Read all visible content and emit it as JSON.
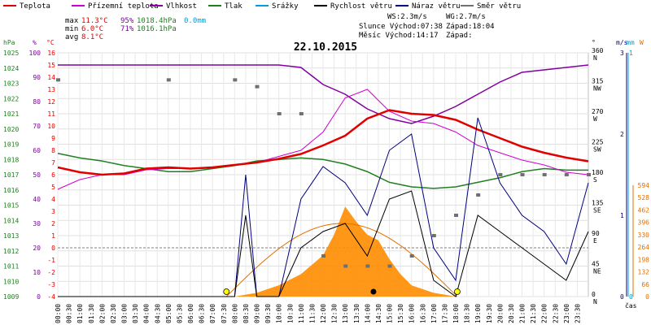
{
  "legend": [
    {
      "label": "Teplota",
      "color": "#e00000"
    },
    {
      "label": "Přízemní teplota",
      "color": "#d000d0"
    },
    {
      "label": "Vlhkost",
      "color": "#8000a0"
    },
    {
      "label": "Tlak",
      "color": "#208020"
    },
    {
      "label": "Srážky",
      "color": "#00a0d0"
    },
    {
      "label": "Rychlost větru",
      "color": "#000000"
    },
    {
      "label": "Náraz větru",
      "color": "#00007f"
    },
    {
      "label": "Směr větru",
      "color": "#707070"
    }
  ],
  "stats": {
    "max": {
      "label": "max",
      "temp": "11.3°C",
      "hum": "95%",
      "press": "1018.4hPa",
      "rain": "0.0mm"
    },
    "min": {
      "label": "min",
      "temp": "6.0°C",
      "hum": "71%",
      "press": "1016.1hPa"
    },
    "avg": {
      "label": "avg",
      "temp": "8.1°C"
    }
  },
  "info": {
    "ws": "WS:2.3m/s",
    "wg": "WG:2.7m/s",
    "sun": "Slunce Východ:07:38",
    "sun_set": "Západ:18:04",
    "moon": "Měsíc Východ:14:17",
    "moon_set": "Západ:"
  },
  "colors": {
    "temp": "#e00000",
    "feel": "#d000d0",
    "hum": "#8000a0",
    "press": "#208020",
    "rain": "#00a0d0",
    "wind": "#000000",
    "gust": "#00007f",
    "dir": "#707070",
    "sun": "#e07000"
  },
  "chart_data": {
    "type": "line",
    "title": "22.10.2015",
    "xlabel": "čas",
    "x_ticks": [
      "00:00",
      "00:30",
      "01:00",
      "01:30",
      "02:00",
      "02:30",
      "03:00",
      "03:30",
      "04:00",
      "04:30",
      "05:00",
      "05:30",
      "06:00",
      "06:30",
      "07:00",
      "07:30",
      "08:00",
      "08:30",
      "09:00",
      "09:30",
      "10:00",
      "10:30",
      "11:00",
      "11:30",
      "12:00",
      "12:30",
      "13:00",
      "13:30",
      "14:00",
      "14:30",
      "15:00",
      "15:30",
      "16:00",
      "16:30",
      "17:00",
      "17:30",
      "18:00",
      "18:30",
      "19:00",
      "19:30",
      "20:00",
      "20:30",
      "21:00",
      "21:30",
      "22:00",
      "22:30",
      "23:00",
      "23:30"
    ],
    "axes": {
      "pressure": {
        "label": "hPa",
        "ticks": [
          "1009",
          "1010",
          "1011",
          "1012",
          "1013",
          "1014",
          "1015",
          "1016",
          "1017",
          "1018",
          "1019",
          "1020",
          "1021",
          "1022",
          "1023",
          "1024",
          "1025"
        ],
        "range": [
          1009,
          1025
        ]
      },
      "humidity": {
        "label": "%",
        "ticks": [
          "0",
          "10",
          "20",
          "30",
          "40",
          "50",
          "60",
          "70",
          "80",
          "90",
          "100"
        ],
        "range": [
          0,
          100
        ]
      },
      "temperature": {
        "label": "°C",
        "ticks": [
          "-4",
          "-3",
          "-2",
          "-1",
          "0",
          "1",
          "2",
          "3",
          "4",
          "5",
          "6",
          "7",
          "8",
          "9",
          "10",
          "11",
          "12",
          "13",
          "14",
          "15",
          "16"
        ],
        "range": [
          -4,
          16
        ]
      },
      "direction": {
        "label": "°",
        "ticks": [
          {
            "v": "0",
            "d": "N"
          },
          {
            "v": "45",
            "d": "NE"
          },
          {
            "v": "90",
            "d": "E"
          },
          {
            "v": "135",
            "d": "SE"
          },
          {
            "v": "180",
            "d": "S"
          },
          {
            "v": "225",
            "d": "SW"
          },
          {
            "v": "270",
            "d": "W"
          },
          {
            "v": "315",
            "d": "NW"
          },
          {
            "v": "360",
            "d": "N"
          }
        ],
        "range": [
          0,
          360
        ]
      },
      "wind": {
        "label": "m/s",
        "ticks": [
          "0",
          "1",
          "2",
          "3"
        ],
        "range": [
          0,
          3
        ]
      },
      "rain": {
        "label": "mm",
        "ticks": [
          "0",
          "1"
        ],
        "range": [
          0,
          1
        ]
      },
      "radiation": {
        "label": "W",
        "ticks": [
          "0",
          "66",
          "132",
          "198",
          "264",
          "330",
          "396",
          "462",
          "528",
          "594"
        ],
        "range": [
          0,
          594
        ]
      }
    },
    "series": [
      {
        "name": "Teplota",
        "unit": "°C",
        "x": [
          0,
          1,
          2,
          3,
          4,
          5,
          6,
          7,
          8,
          9,
          10,
          11,
          12,
          13,
          14,
          15,
          16,
          17,
          18,
          19,
          20,
          21,
          22,
          23,
          24
        ],
        "values": [
          6.6,
          6.2,
          6.0,
          6.1,
          6.5,
          6.6,
          6.5,
          6.6,
          6.8,
          7.0,
          7.3,
          7.7,
          8.4,
          9.2,
          10.6,
          11.3,
          11.0,
          10.9,
          10.5,
          9.7,
          9.0,
          8.3,
          7.8,
          7.4,
          7.1
        ]
      },
      {
        "name": "Přízemní teplota",
        "unit": "°C",
        "x": [
          0,
          1,
          2,
          3,
          4,
          5,
          6,
          7,
          8,
          9,
          10,
          11,
          12,
          13,
          14,
          15,
          16,
          17,
          18,
          19,
          20,
          21,
          22,
          23,
          24
        ],
        "values": [
          4.8,
          5.6,
          6.0,
          6.0,
          6.4,
          6.5,
          6.5,
          6.6,
          6.8,
          7.0,
          7.5,
          8.0,
          9.5,
          12.3,
          13.0,
          11.2,
          10.4,
          10.2,
          9.5,
          8.4,
          7.8,
          7.2,
          6.8,
          6.2,
          6.0
        ]
      },
      {
        "name": "Vlhkost",
        "unit": "%",
        "x": [
          0,
          1,
          2,
          3,
          4,
          5,
          6,
          7,
          8,
          9,
          10,
          11,
          12,
          13,
          14,
          15,
          16,
          17,
          18,
          19,
          20,
          21,
          22,
          23,
          24
        ],
        "values": [
          95,
          95,
          95,
          95,
          95,
          95,
          95,
          95,
          95,
          95,
          95,
          94,
          87,
          83,
          77,
          73,
          71,
          74,
          78,
          83,
          88,
          92,
          93,
          94,
          95
        ]
      },
      {
        "name": "Tlak",
        "unit": "hPa",
        "x": [
          0,
          1,
          2,
          3,
          4,
          5,
          6,
          7,
          8,
          9,
          10,
          11,
          12,
          13,
          14,
          15,
          16,
          17,
          18,
          19,
          20,
          21,
          22,
          23,
          24
        ],
        "values": [
          1018.4,
          1018.1,
          1017.9,
          1017.6,
          1017.4,
          1017.2,
          1017.2,
          1017.4,
          1017.6,
          1017.9,
          1018.0,
          1018.1,
          1018.0,
          1017.7,
          1017.2,
          1016.5,
          1016.2,
          1016.1,
          1016.2,
          1016.5,
          1016.8,
          1017.2,
          1017.4,
          1017.3,
          1017.3
        ]
      },
      {
        "name": "Rychlost větru",
        "unit": "m/s",
        "x": [
          0,
          6,
          8,
          8.5,
          9,
          10,
          11,
          12,
          13,
          14,
          15,
          16,
          17,
          18,
          19,
          20,
          21,
          22,
          23,
          24
        ],
        "values": [
          0,
          0,
          0,
          1.0,
          0,
          0,
          0.6,
          0.8,
          0.9,
          0.5,
          1.2,
          1.3,
          0.2,
          0,
          1.0,
          0.8,
          0.6,
          0.4,
          0.2,
          0.8
        ]
      },
      {
        "name": "Náraz větru",
        "unit": "m/s",
        "x": [
          0,
          6,
          8,
          8.5,
          9,
          10,
          11,
          12,
          13,
          14,
          15,
          16,
          17,
          18,
          19,
          20,
          21,
          22,
          23,
          24
        ],
        "values": [
          0,
          0,
          0,
          1.5,
          0,
          0,
          1.2,
          1.6,
          1.4,
          1.0,
          1.8,
          2.0,
          0.6,
          0.2,
          2.2,
          1.4,
          1.0,
          0.8,
          0.4,
          1.4
        ]
      },
      {
        "name": "Směr větru",
        "unit": "°",
        "x": [
          0,
          5,
          8,
          9,
          10,
          11,
          12,
          13,
          14,
          15,
          16,
          17,
          18,
          19,
          20,
          21,
          22,
          23,
          24
        ],
        "values": [
          320,
          320,
          320,
          310,
          270,
          270,
          60,
          45,
          45,
          45,
          60,
          90,
          120,
          150,
          180,
          180,
          180,
          180,
          180
        ]
      },
      {
        "name": "Srážky",
        "unit": "mm",
        "x": [
          0,
          24
        ],
        "values": [
          0,
          0
        ]
      },
      {
        "name": "Sluneční záření",
        "unit": "W",
        "x": [
          8,
          9,
          10,
          11,
          12,
          12.5,
          13,
          13.5,
          14,
          14.5,
          15,
          15.5,
          16,
          17,
          18
        ],
        "values": [
          0,
          20,
          60,
          120,
          220,
          330,
          480,
          400,
          330,
          300,
          200,
          120,
          60,
          20,
          0
        ]
      }
    ],
    "sun_markers": [
      7.63,
      18.07
    ],
    "moon_marker": 14.28
  }
}
